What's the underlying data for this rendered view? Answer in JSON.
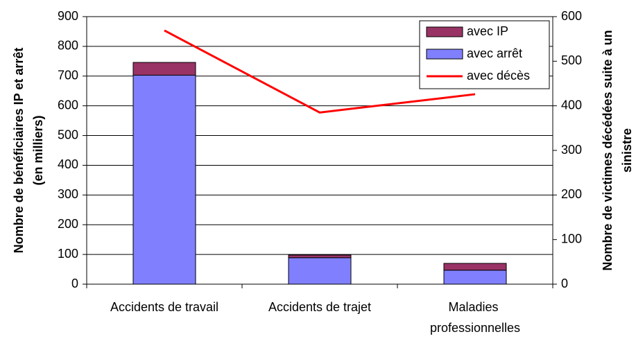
{
  "chart_data": {
    "type": "bar_line",
    "categories": [
      "Accidents de travail",
      "Accidents de trajet",
      "Maladies professionnelles"
    ],
    "series": [
      {
        "name": "avec arrêt",
        "color": "#8080ff",
        "values": [
          703,
          89,
          47
        ]
      },
      {
        "name": "avec IP",
        "color": "#993366",
        "values": [
          43,
          9,
          23
        ]
      },
      {
        "name": "avec décès",
        "color": "#ff0000",
        "axis": "y2",
        "values": [
          569,
          385,
          426
        ]
      }
    ],
    "ylabel": [
      "Nombre de bénéficiaires IP et arrêt",
      "(en milliers)"
    ],
    "y2label": [
      "Nombre de victimes décédées suite à un",
      "sinistre"
    ],
    "ylim": [
      0,
      900
    ],
    "yticks": [
      0,
      100,
      200,
      300,
      400,
      500,
      600,
      700,
      800,
      900
    ],
    "y2lim": [
      0,
      600
    ],
    "y2ticks": [
      0,
      100,
      200,
      300,
      400,
      500,
      600
    ],
    "grid": true,
    "legend": "upper right"
  }
}
